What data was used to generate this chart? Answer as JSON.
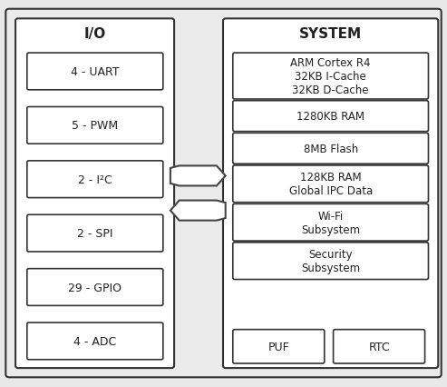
{
  "bg_color": "#e8e8e8",
  "box_color": "#ffffff",
  "panel_color": "#ffffff",
  "border_color": "#333333",
  "text_color": "#222222",
  "io_label": "I/O",
  "system_label": "SYSTEM",
  "io_boxes": [
    "4 - UART",
    "5 - PWM",
    "2 - I²C",
    "2 - SPI",
    "29 - GPIO",
    "4 - ADC"
  ],
  "system_boxes": [
    "ARM Cortex R4\n32KB I-Cache\n32KB D-Cache",
    "1280KB RAM",
    "8MB Flash",
    "128KB RAM\nGlobal IPC Data",
    "Wi-Fi\nSubsystem",
    "Security\nSubsystem"
  ],
  "bottom_boxes": [
    "PUF",
    "RTC"
  ],
  "figsize": [
    4.93,
    4.27
  ],
  "dpi": 100
}
